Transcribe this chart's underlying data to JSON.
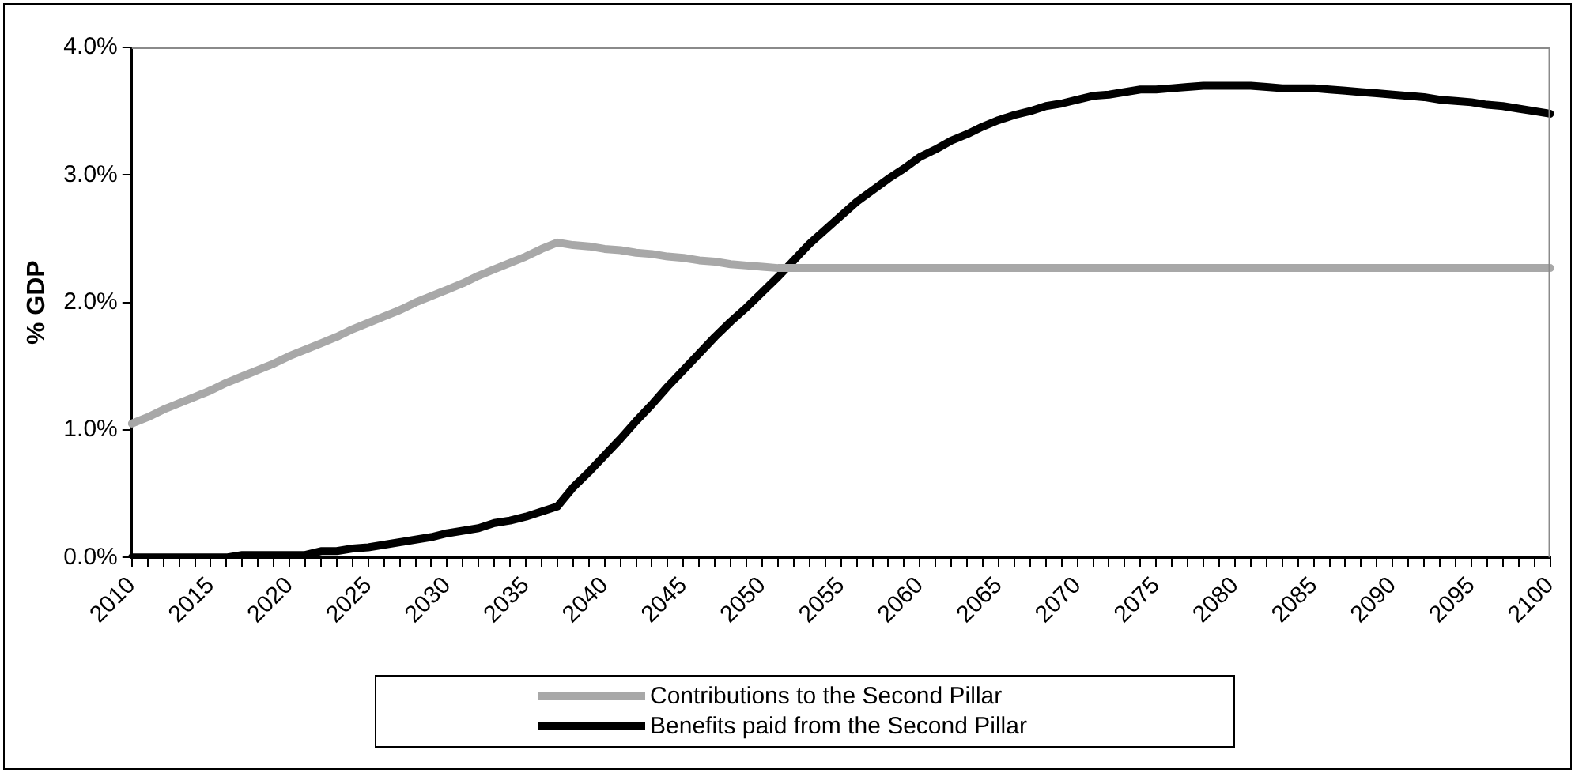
{
  "chart_data": {
    "type": "line",
    "ylabel": "% GDP",
    "categories": [
      "2010",
      null,
      null,
      null,
      null,
      "2015",
      null,
      null,
      null,
      null,
      "2020",
      null,
      null,
      null,
      null,
      "2025",
      null,
      null,
      null,
      null,
      "2030",
      null,
      null,
      null,
      null,
      "2035",
      null,
      null,
      null,
      null,
      "2040",
      null,
      null,
      null,
      null,
      "2045",
      null,
      null,
      null,
      null,
      "2050",
      null,
      null,
      null,
      null,
      "2055",
      null,
      null,
      null,
      null,
      "2060",
      null,
      null,
      null,
      null,
      "2065",
      null,
      null,
      null,
      null,
      "2070",
      null,
      null,
      null,
      null,
      "2075",
      null,
      null,
      null,
      null,
      "2080",
      null,
      null,
      null,
      null,
      "2085",
      null,
      null,
      null,
      null,
      "2090",
      null,
      null,
      null,
      null,
      "2095",
      null,
      null,
      null,
      null,
      "2100"
    ],
    "series": [
      {
        "name": "Contributions to the Second Pillar",
        "color": "#a8a8a8",
        "values": [
          1.05,
          1.1,
          1.16,
          1.21,
          1.26,
          1.31,
          1.37,
          1.42,
          1.47,
          1.52,
          1.58,
          1.63,
          1.68,
          1.73,
          1.79,
          1.84,
          1.89,
          1.94,
          2.0,
          2.05,
          2.1,
          2.15,
          2.21,
          2.26,
          2.31,
          2.36,
          2.42,
          2.47,
          2.45,
          2.44,
          2.42,
          2.41,
          2.39,
          2.38,
          2.36,
          2.35,
          2.33,
          2.32,
          2.3,
          2.29,
          2.28,
          2.27,
          2.27,
          2.27,
          2.27,
          2.27,
          2.27,
          2.27,
          2.27,
          2.27,
          2.27,
          2.27,
          2.27,
          2.27,
          2.27,
          2.27,
          2.27,
          2.27,
          2.27,
          2.27,
          2.27,
          2.27,
          2.27,
          2.27,
          2.27,
          2.27,
          2.27,
          2.27,
          2.27,
          2.27,
          2.27,
          2.27,
          2.27,
          2.27,
          2.27,
          2.27,
          2.27,
          2.27,
          2.27,
          2.27,
          2.27,
          2.27,
          2.27,
          2.27,
          2.27,
          2.27,
          2.27,
          2.27,
          2.27,
          2.27,
          2.27
        ]
      },
      {
        "name": "Benefits paid from the Second Pillar",
        "color": "#000000",
        "values": [
          0,
          0,
          0,
          0,
          0,
          0,
          0,
          0.02,
          0.02,
          0.02,
          0.02,
          0.02,
          0.05,
          0.05,
          0.07,
          0.08,
          0.1,
          0.12,
          0.14,
          0.16,
          0.19,
          0.21,
          0.23,
          0.27,
          0.29,
          0.32,
          0.36,
          0.4,
          0.55,
          0.67,
          0.8,
          0.93,
          1.07,
          1.2,
          1.34,
          1.47,
          1.6,
          1.73,
          1.85,
          1.96,
          2.08,
          2.2,
          2.33,
          2.46,
          2.57,
          2.68,
          2.79,
          2.88,
          2.97,
          3.05,
          3.14,
          3.2,
          3.27,
          3.32,
          3.38,
          3.43,
          3.47,
          3.5,
          3.54,
          3.56,
          3.59,
          3.62,
          3.63,
          3.65,
          3.67,
          3.67,
          3.68,
          3.69,
          3.7,
          3.7,
          3.7,
          3.7,
          3.69,
          3.68,
          3.68,
          3.68,
          3.67,
          3.66,
          3.65,
          3.64,
          3.63,
          3.62,
          3.61,
          3.59,
          3.58,
          3.57,
          3.55,
          3.54,
          3.52,
          3.5,
          3.48
        ]
      }
    ],
    "ylim": [
      0,
      4
    ],
    "yticks": [
      {
        "value": 0,
        "label": "0.0%"
      },
      {
        "value": 1,
        "label": "1.0%"
      },
      {
        "value": 2,
        "label": "2.0%"
      },
      {
        "value": 3,
        "label": "3.0%"
      },
      {
        "value": 4,
        "label": "4.0%"
      }
    ],
    "grid": false,
    "legend": "bottom",
    "marker": "none",
    "line_style": "solid"
  }
}
